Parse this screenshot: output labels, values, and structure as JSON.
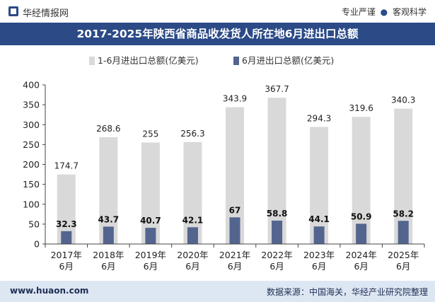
{
  "header": {
    "brand": "华经情报网",
    "tag1": "专业严谨",
    "tag_sep": "●",
    "tag2": "客观科学"
  },
  "chart_data": {
    "type": "bar",
    "title": "2017-2025年陕西省商品收发货人所在地6月进出口总额",
    "categories": [
      "2017年6月",
      "2018年6月",
      "2019年6月",
      "2020年6月",
      "2021年6月",
      "2022年6月",
      "2023年6月",
      "2024年6月",
      "2025年6月"
    ],
    "category_lines": [
      [
        "2017年",
        "6月"
      ],
      [
        "2018年",
        "6月"
      ],
      [
        "2019年",
        "6月"
      ],
      [
        "2020年",
        "6月"
      ],
      [
        "2021年",
        "6月"
      ],
      [
        "2022年",
        "6月"
      ],
      [
        "2023年",
        "6月"
      ],
      [
        "2024年",
        "6月"
      ],
      [
        "2025年",
        "6月"
      ]
    ],
    "series": [
      {
        "name": "1-6月进出口总额(亿美元)",
        "color": "#d9d9d9",
        "values": [
          174.7,
          268.6,
          255,
          256.3,
          343.9,
          367.7,
          294.3,
          319.6,
          340.3
        ]
      },
      {
        "name": "6月进出口总额(亿美元)",
        "color": "#53658f",
        "values": [
          32.3,
          43.7,
          40.7,
          42.1,
          67,
          58.8,
          44.1,
          50.9,
          58.2
        ]
      }
    ],
    "ylim": [
      0,
      400
    ],
    "yticks": [
      0,
      50,
      100,
      150,
      200,
      250,
      300,
      350,
      400
    ],
    "xlabel": "",
    "ylabel": ""
  },
  "footer": {
    "site": "www.huaon.com",
    "source": "数据来源：中国海关，华经产业研究院整理"
  }
}
